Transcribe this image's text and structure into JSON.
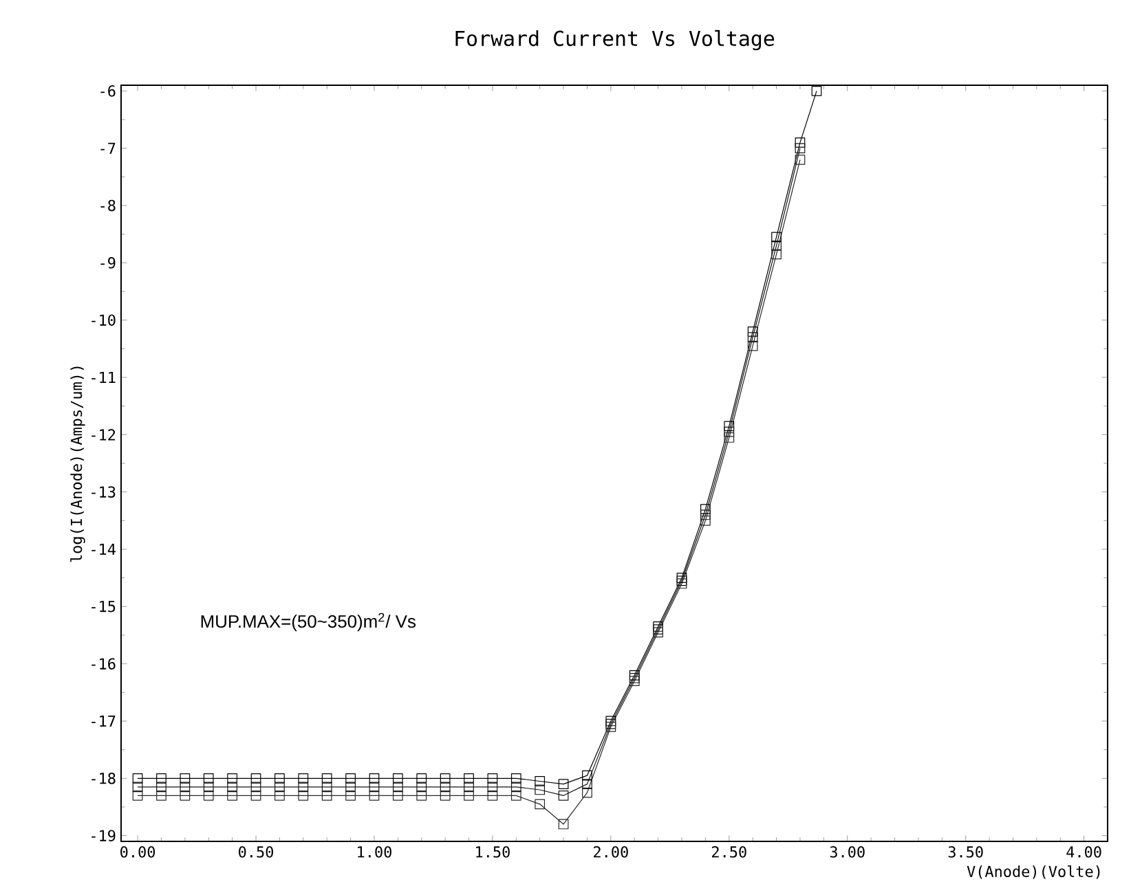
{
  "chart_data": {
    "type": "line",
    "title": "Forward Current Vs Voltage",
    "xlabel": "V(Anode)(Volte)",
    "ylabel": "log(I(Anode)(Amps/um))",
    "annotations": [
      "MUP.MAX=(50~350)m$^{2}$/ Vs"
    ],
    "x": [
      0,
      0.1,
      0.2,
      0.3,
      0.4,
      0.5,
      0.6,
      0.7,
      0.8,
      0.9,
      1.0,
      1.1,
      1.2,
      1.3,
      1.4,
      1.5,
      1.6,
      1.7,
      1.8,
      1.9,
      2.0,
      2.1,
      2.2,
      2.3,
      2.4,
      2.5,
      2.6,
      2.7,
      2.8,
      2.87
    ],
    "series": [
      {
        "color": "#000000",
        "values": [
          -18.0,
          -18.0,
          -18.0,
          -18.0,
          -18.0,
          -18.0,
          -18.0,
          -18.0,
          -18.0,
          -18.0,
          -18.0,
          -18.0,
          -18.0,
          -18.0,
          -18.0,
          -18.0,
          -18.0,
          -18.05,
          -18.1,
          -17.95,
          -17.0,
          -16.2,
          -15.35,
          -14.5,
          -13.3,
          -11.85,
          -10.2,
          -8.55,
          -6.9,
          -6.0
        ]
      },
      {
        "color": "#141414",
        "values": [
          -18.15,
          -18.15,
          -18.15,
          -18.15,
          -18.15,
          -18.15,
          -18.15,
          -18.15,
          -18.15,
          -18.15,
          -18.15,
          -18.15,
          -18.15,
          -18.15,
          -18.15,
          -18.15,
          -18.15,
          -18.2,
          -18.3,
          -18.1,
          -17.05,
          -16.25,
          -15.4,
          -14.55,
          -13.4,
          -11.95,
          -10.3,
          -8.7,
          -7.0,
          null
        ]
      },
      {
        "color": "#282828",
        "values": [
          -18.3,
          -18.3,
          -18.3,
          -18.3,
          -18.3,
          -18.3,
          -18.3,
          -18.3,
          -18.3,
          -18.3,
          -18.3,
          -18.3,
          -18.3,
          -18.3,
          -18.3,
          -18.3,
          -18.3,
          -18.45,
          -18.8,
          -18.25,
          -17.1,
          -16.3,
          -15.45,
          -14.6,
          -13.5,
          -12.05,
          -10.45,
          -8.85,
          -7.2,
          null
        ]
      }
    ],
    "marker": "square",
    "line_style": "solid",
    "xlim": [
      -0.07,
      4.1
    ],
    "ylim": [
      -19.1,
      -5.9
    ],
    "xticks": [
      {
        "value": 0,
        "label": "0.00"
      },
      {
        "value": 0.5,
        "label": "0.50"
      },
      {
        "value": 1,
        "label": "1.00"
      },
      {
        "value": 1.5,
        "label": "1.50"
      },
      {
        "value": 2,
        "label": "2.00"
      },
      {
        "value": 2.5,
        "label": "2.50"
      },
      {
        "value": 3,
        "label": "3.00"
      },
      {
        "value": 3.5,
        "label": "3.50"
      },
      {
        "value": 4,
        "label": "4.00"
      }
    ],
    "yticks": [
      -19,
      -18,
      -17,
      -16,
      -15,
      -14,
      -13,
      -12,
      -11,
      -10,
      -9,
      -8,
      -7,
      -6
    ]
  }
}
